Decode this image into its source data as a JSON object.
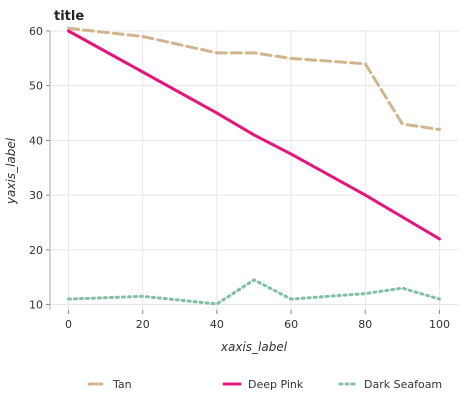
{
  "chart_data": {
    "type": "line",
    "title": "title",
    "xlabel": "xaxis_label",
    "ylabel": "yaxis_label",
    "x": [
      0,
      20,
      40,
      50,
      60,
      80,
      90,
      100
    ],
    "xticks": [
      0,
      20,
      40,
      60,
      80,
      100
    ],
    "yticks": [
      10,
      20,
      30,
      40,
      50,
      60
    ],
    "xlim": [
      -5,
      105
    ],
    "ylim": [
      9,
      60
    ],
    "grid": true,
    "legend": "bottom",
    "series": [
      {
        "name": "Tan",
        "color": "#d2b48c",
        "style": "dashed",
        "values": [
          60.5,
          59,
          56,
          56,
          55,
          54,
          43,
          42
        ]
      },
      {
        "name": "Deep Pink",
        "color": "#e6157c",
        "style": "solid",
        "values": [
          60,
          52.5,
          45,
          41,
          37.5,
          30,
          26,
          22
        ]
      },
      {
        "name": "Dark Seafoam",
        "color": "#7ec0a0",
        "style": "dotted",
        "values": [
          11,
          11.5,
          10.1,
          14.5,
          11,
          12,
          13,
          11
        ]
      }
    ]
  }
}
